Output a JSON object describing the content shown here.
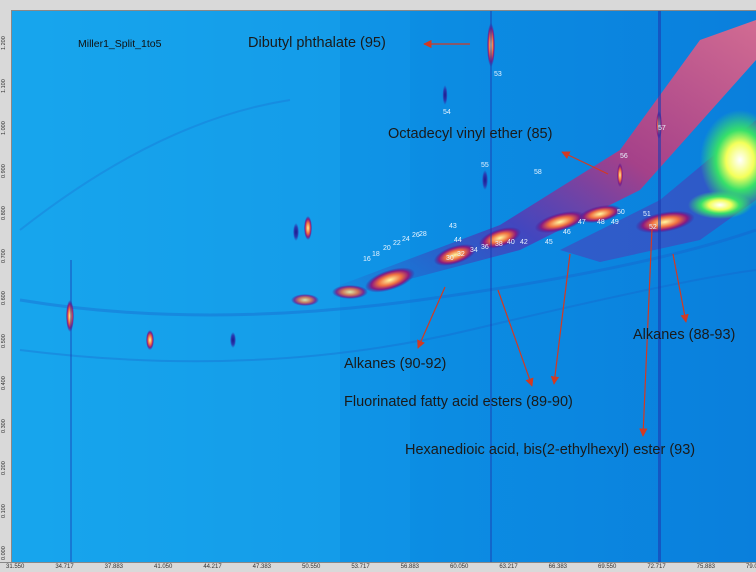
{
  "sample_name": "Miller1_Split_1to5",
  "annotations": {
    "dibutyl": "Dibutyl phthalate (95)",
    "octadecyl": "Octadecyl vinyl ether (85)",
    "alkanes_left": "Alkanes (90-92)",
    "alkanes_right": "Alkanes (88-93)",
    "fluorinated": "Fluorinated fatty acid esters (89-90)",
    "hexanedioic": "Hexanedioic acid, bis(2-ethylhexyl) ester (93)"
  },
  "peak_labels": [
    "53",
    "54",
    "55",
    "58",
    "56",
    "57",
    "50",
    "51",
    "52",
    "47",
    "48",
    "49",
    "46",
    "45",
    "43",
    "44",
    "42",
    "40",
    "38",
    "36",
    "34",
    "32",
    "30",
    "28",
    "26",
    "24",
    "22",
    "20",
    "18",
    "16"
  ],
  "x_tick_labels": [
    "31.550",
    "34.717",
    "37.883",
    "41.050",
    "44.217",
    "47.383",
    "50.550",
    "53.717",
    "56.883",
    "60.050",
    "63.217",
    "66.383",
    "69.550",
    "72.717",
    "75.883",
    "79.050"
  ],
  "y_tick_labels": [
    "1.200",
    "1.100",
    "1.000",
    "0.900",
    "0.800",
    "0.700",
    "0.600",
    "0.500",
    "0.400",
    "0.300",
    "0.200",
    "0.100",
    "0.000"
  ],
  "colors": {
    "background": "#0a8fe6",
    "arrow": "#d23a22",
    "text": "#1a1a1a"
  }
}
